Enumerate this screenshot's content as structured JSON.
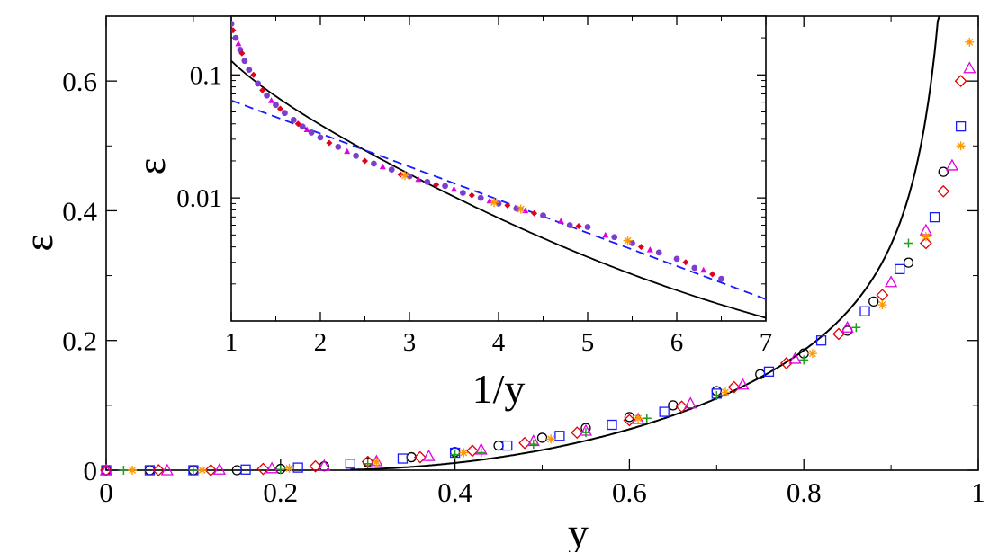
{
  "chart_data": [
    {
      "type": "scatter",
      "title": "",
      "xlabel": "y",
      "ylabel": "ε",
      "xlim": [
        0,
        1
      ],
      "ylim": [
        0,
        0.7
      ],
      "xticks": [
        0,
        0.2,
        0.4,
        0.6,
        0.8,
        1
      ],
      "xtick_labels": [
        "0",
        "0.2",
        "0.4",
        "0.6",
        "0.8",
        "1"
      ],
      "yticks": [
        0,
        0.2,
        0.4,
        0.6
      ],
      "ytick_labels": [
        "0",
        "0.2",
        "0.4",
        "0.6"
      ],
      "grid": false,
      "legend": "none",
      "series": [
        {
          "marker": "circle-open",
          "color": "#000000",
          "points": [
            [
              0.0,
              0.0
            ],
            [
              0.05,
              0.0
            ],
            [
              0.1,
              0.0
            ],
            [
              0.15,
              0.0
            ],
            [
              0.2,
              0.002
            ],
            [
              0.25,
              0.006
            ],
            [
              0.3,
              0.012
            ],
            [
              0.35,
              0.02
            ],
            [
              0.4,
              0.028
            ],
            [
              0.45,
              0.038
            ],
            [
              0.5,
              0.05
            ],
            [
              0.55,
              0.065
            ],
            [
              0.6,
              0.082
            ],
            [
              0.65,
              0.1
            ],
            [
              0.7,
              0.122
            ],
            [
              0.75,
              0.148
            ],
            [
              0.8,
              0.18
            ],
            [
              0.85,
              0.215
            ],
            [
              0.88,
              0.26
            ],
            [
              0.92,
              0.32
            ],
            [
              0.96,
              0.46
            ]
          ]
        },
        {
          "marker": "square-open",
          "color": "#1a1aff",
          "points": [
            [
              0.0,
              0.0
            ],
            [
              0.05,
              0.0
            ],
            [
              0.1,
              0.0
            ],
            [
              0.16,
              0.001
            ],
            [
              0.22,
              0.004
            ],
            [
              0.28,
              0.01
            ],
            [
              0.34,
              0.018
            ],
            [
              0.4,
              0.027
            ],
            [
              0.46,
              0.038
            ],
            [
              0.52,
              0.053
            ],
            [
              0.58,
              0.07
            ],
            [
              0.64,
              0.09
            ],
            [
              0.7,
              0.118
            ],
            [
              0.76,
              0.152
            ],
            [
              0.82,
              0.2
            ],
            [
              0.87,
              0.245
            ],
            [
              0.91,
              0.31
            ],
            [
              0.95,
              0.39
            ],
            [
              0.98,
              0.53
            ]
          ]
        },
        {
          "marker": "diamond-open",
          "color": "#e00000",
          "points": [
            [
              0.0,
              0.0
            ],
            [
              0.06,
              0.0
            ],
            [
              0.12,
              0.0
            ],
            [
              0.18,
              0.002
            ],
            [
              0.24,
              0.006
            ],
            [
              0.3,
              0.013
            ],
            [
              0.36,
              0.02
            ],
            [
              0.42,
              0.03
            ],
            [
              0.48,
              0.042
            ],
            [
              0.54,
              0.058
            ],
            [
              0.6,
              0.077
            ],
            [
              0.66,
              0.098
            ],
            [
              0.72,
              0.128
            ],
            [
              0.78,
              0.165
            ],
            [
              0.84,
              0.21
            ],
            [
              0.89,
              0.27
            ],
            [
              0.94,
              0.35
            ],
            [
              0.96,
              0.43
            ],
            [
              0.98,
              0.6
            ]
          ]
        },
        {
          "marker": "triangle-open",
          "color": "#e000e0",
          "points": [
            [
              0.0,
              0.0
            ],
            [
              0.07,
              0.0
            ],
            [
              0.13,
              0.001
            ],
            [
              0.19,
              0.003
            ],
            [
              0.25,
              0.007
            ],
            [
              0.31,
              0.014
            ],
            [
              0.37,
              0.022
            ],
            [
              0.43,
              0.032
            ],
            [
              0.49,
              0.045
            ],
            [
              0.55,
              0.061
            ],
            [
              0.61,
              0.079
            ],
            [
              0.67,
              0.103
            ],
            [
              0.73,
              0.132
            ],
            [
              0.79,
              0.172
            ],
            [
              0.85,
              0.22
            ],
            [
              0.9,
              0.29
            ],
            [
              0.94,
              0.37
            ],
            [
              0.97,
              0.47
            ],
            [
              0.99,
              0.62
            ]
          ]
        },
        {
          "marker": "plus",
          "color": "#1f9e1f",
          "points": [
            [
              0.02,
              0.0
            ],
            [
              0.1,
              0.0
            ],
            [
              0.2,
              0.001
            ],
            [
              0.3,
              0.01
            ],
            [
              0.4,
              0.024
            ],
            [
              0.43,
              0.027
            ],
            [
              0.49,
              0.04
            ],
            [
              0.55,
              0.058
            ],
            [
              0.62,
              0.08
            ],
            [
              0.7,
              0.115
            ],
            [
              0.8,
              0.17
            ],
            [
              0.86,
              0.22
            ],
            [
              0.92,
              0.35
            ]
          ]
        },
        {
          "marker": "star",
          "color": "#ff9900",
          "points": [
            [
              0.03,
              0.0
            ],
            [
              0.11,
              0.0
            ],
            [
              0.21,
              0.003
            ],
            [
              0.31,
              0.013
            ],
            [
              0.41,
              0.027
            ],
            [
              0.51,
              0.048
            ],
            [
              0.61,
              0.08
            ],
            [
              0.71,
              0.12
            ],
            [
              0.81,
              0.18
            ],
            [
              0.89,
              0.255
            ],
            [
              0.94,
              0.36
            ],
            [
              0.98,
              0.5
            ],
            [
              0.99,
              0.66
            ]
          ]
        }
      ],
      "curve": {
        "color": "#000000"
      }
    },
    {
      "type": "scatter",
      "title": "",
      "xlabel": "1/y",
      "ylabel": "ε",
      "xlim": [
        1,
        7
      ],
      "ylim": [
        0.001,
        0.3
      ],
      "yscale": "log",
      "xticks": [
        1,
        2,
        3,
        4,
        5,
        6,
        7
      ],
      "xtick_labels": [
        "1",
        "2",
        "3",
        "4",
        "5",
        "6",
        "7"
      ],
      "yticks": [
        0.01,
        0.1
      ],
      "ytick_labels": [
        "0.01",
        "0.1"
      ],
      "grid": false,
      "legend": "none",
      "series": [
        {
          "marker": "circle-filled",
          "color": "#7b3fd0",
          "points": [
            [
              1.0,
              0.26
            ],
            [
              1.05,
              0.2
            ],
            [
              1.1,
              0.16
            ],
            [
              1.15,
              0.13
            ],
            [
              1.2,
              0.11
            ],
            [
              1.3,
              0.085
            ],
            [
              1.4,
              0.068
            ],
            [
              1.5,
              0.057
            ],
            [
              1.6,
              0.049
            ],
            [
              1.7,
              0.043
            ],
            [
              1.8,
              0.038
            ],
            [
              1.9,
              0.034
            ],
            [
              2.0,
              0.031
            ],
            [
              2.2,
              0.026
            ],
            [
              2.4,
              0.022
            ],
            [
              2.6,
              0.019
            ],
            [
              2.8,
              0.017
            ],
            [
              3.0,
              0.015
            ],
            [
              3.2,
              0.0135
            ],
            [
              3.4,
              0.0125
            ],
            [
              3.6,
              0.011
            ],
            [
              3.8,
              0.01
            ],
            [
              4.0,
              0.009
            ],
            [
              4.2,
              0.0082
            ],
            [
              4.5,
              0.0072
            ],
            [
              4.8,
              0.006
            ],
            [
              5.0,
              0.0058
            ],
            [
              5.3,
              0.0048
            ],
            [
              5.5,
              0.0043
            ],
            [
              5.8,
              0.0036
            ],
            [
              6.0,
              0.0032
            ],
            [
              6.2,
              0.0027
            ],
            [
              6.5,
              0.0022
            ]
          ]
        },
        {
          "marker": "diamond-filled",
          "color": "#e00020",
          "points": [
            [
              1.02,
              0.23
            ],
            [
              1.12,
              0.15
            ],
            [
              1.25,
              0.1
            ],
            [
              1.35,
              0.075
            ],
            [
              1.55,
              0.053
            ],
            [
              1.75,
              0.04
            ],
            [
              2.1,
              0.028
            ],
            [
              2.5,
              0.02
            ],
            [
              2.9,
              0.0155
            ],
            [
              3.3,
              0.0128
            ],
            [
              3.7,
              0.0105
            ],
            [
              4.1,
              0.0087
            ],
            [
              4.4,
              0.0075
            ],
            [
              4.9,
              0.0059
            ],
            [
              5.6,
              0.004
            ],
            [
              6.1,
              0.003
            ],
            [
              6.4,
              0.0024
            ]
          ]
        },
        {
          "marker": "triangle-filled",
          "color": "#e000e0",
          "points": [
            [
              1.08,
              0.18
            ],
            [
              1.45,
              0.062
            ],
            [
              1.85,
              0.036
            ],
            [
              2.3,
              0.024
            ],
            [
              2.7,
              0.018
            ],
            [
              3.1,
              0.0142
            ],
            [
              3.5,
              0.0118
            ],
            [
              3.9,
              0.0095
            ],
            [
              4.3,
              0.0079
            ],
            [
              4.7,
              0.0065
            ],
            [
              5.2,
              0.005
            ],
            [
              5.7,
              0.0038
            ],
            [
              6.3,
              0.0026
            ]
          ]
        },
        {
          "marker": "star",
          "color": "#ff9900",
          "points": [
            [
              2.95,
              0.0152
            ],
            [
              3.95,
              0.0092
            ],
            [
              4.25,
              0.0081
            ],
            [
              5.45,
              0.0045
            ]
          ]
        }
      ],
      "curves": [
        {
          "style": "solid",
          "color": "#000000"
        },
        {
          "style": "dashed",
          "color": "#1a1aff"
        }
      ]
    }
  ]
}
